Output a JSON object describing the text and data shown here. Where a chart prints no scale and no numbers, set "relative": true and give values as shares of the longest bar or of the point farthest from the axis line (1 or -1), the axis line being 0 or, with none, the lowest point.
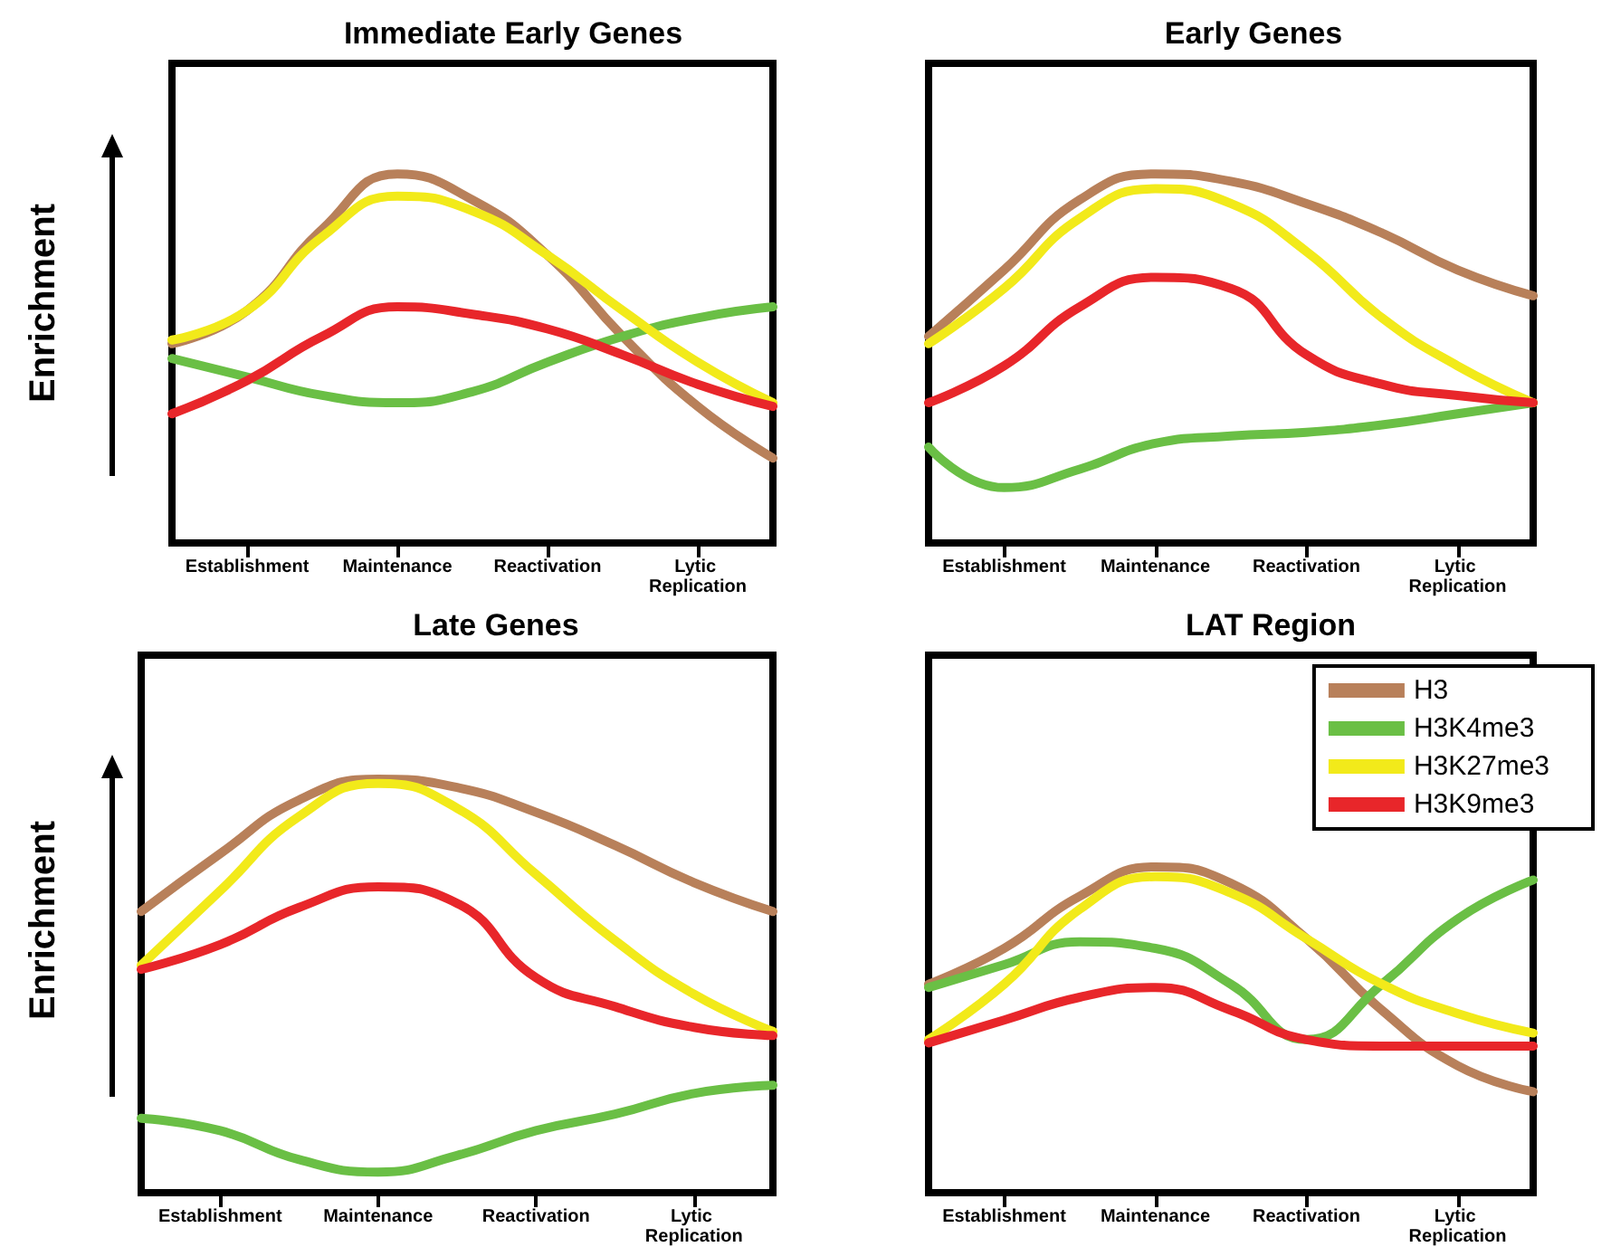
{
  "chart_data": [
    {
      "type": "line",
      "title": "Immediate Early Genes",
      "ylabel": "Enrichment",
      "relative": true,
      "legend": false,
      "grid": false,
      "marker": "none",
      "categories": [
        null,
        "Establishment",
        null,
        "Maintenance",
        null,
        "Reactivation",
        null,
        "Lytic Replication",
        null
      ],
      "series": [
        {
          "color": "#b8805a",
          "values": [
            0.54,
            0.63,
            0.85,
            1,
            0.93,
            0.78,
            0.56,
            0.37,
            0.23
          ]
        },
        {
          "color": "#6abf45",
          "values": [
            0.5,
            0.45,
            0.4,
            0.38,
            0.41,
            0.49,
            0.56,
            0.61,
            0.64
          ]
        },
        {
          "color": "#f2ea1a",
          "values": [
            0.55,
            0.63,
            0.83,
            0.94,
            0.9,
            0.78,
            0.63,
            0.49,
            0.38
          ]
        },
        {
          "color": "#e8262a",
          "values": [
            0.35,
            0.44,
            0.56,
            0.64,
            0.62,
            0.58,
            0.51,
            0.43,
            0.37
          ]
        }
      ]
    },
    {
      "type": "line",
      "title": "Early Genes",
      "relative": true,
      "legend": false,
      "grid": false,
      "marker": "none",
      "categories": [
        null,
        "Establishment",
        null,
        "Maintenance",
        null,
        "Reactivation",
        null,
        "Lytic Replication",
        null
      ],
      "series": [
        {
          "color": "#b8805a",
          "values": [
            0.56,
            0.74,
            0.93,
            1,
            0.98,
            0.92,
            0.84,
            0.74,
            0.67
          ]
        },
        {
          "color": "#6abf45",
          "values": [
            0.26,
            0.15,
            0.2,
            0.27,
            0.29,
            0.3,
            0.32,
            0.35,
            0.38
          ]
        },
        {
          "color": "#f2ea1a",
          "values": [
            0.54,
            0.69,
            0.88,
            0.96,
            0.92,
            0.79,
            0.61,
            0.48,
            0.38
          ]
        },
        {
          "color": "#e8262a",
          "values": [
            0.38,
            0.48,
            0.64,
            0.72,
            0.69,
            0.51,
            0.43,
            0.4,
            0.38
          ]
        }
      ]
    },
    {
      "type": "line",
      "title": "Late Genes",
      "ylabel": "Enrichment",
      "relative": true,
      "legend": false,
      "grid": false,
      "marker": "none",
      "categories": [
        null,
        "Establishment",
        null,
        "Maintenance",
        null,
        "Reactivation",
        null,
        "Lytic Replication",
        null
      ],
      "series": [
        {
          "color": "#b8805a",
          "values": [
            0.68,
            0.82,
            0.95,
            1,
            0.98,
            0.92,
            0.84,
            0.75,
            0.68
          ]
        },
        {
          "color": "#6abf45",
          "values": [
            0.18,
            0.15,
            0.08,
            0.05,
            0.09,
            0.15,
            0.19,
            0.24,
            0.26
          ]
        },
        {
          "color": "#f2ea1a",
          "values": [
            0.55,
            0.73,
            0.91,
            0.99,
            0.93,
            0.77,
            0.61,
            0.48,
            0.39
          ]
        },
        {
          "color": "#e8262a",
          "values": [
            0.54,
            0.6,
            0.69,
            0.74,
            0.7,
            0.52,
            0.45,
            0.4,
            0.38
          ]
        }
      ]
    },
    {
      "type": "line",
      "title": "LAT Region",
      "relative": true,
      "legend": "top right",
      "grid": false,
      "marker": "none",
      "categories": [
        null,
        "Establishment",
        null,
        "Maintenance",
        null,
        "Reactivation",
        null,
        "Lytic Replication",
        null
      ],
      "series": [
        {
          "name": "H3",
          "color": "#b8805a",
          "values": [
            0.64,
            0.75,
            0.91,
            1,
            0.95,
            0.78,
            0.56,
            0.39,
            0.31
          ]
        },
        {
          "name": "H3K4me3",
          "color": "#6abf45",
          "values": [
            0.63,
            0.7,
            0.77,
            0.75,
            0.64,
            0.47,
            0.64,
            0.84,
            0.96
          ]
        },
        {
          "name": "H3K27me3",
          "color": "#f2ea1a",
          "values": [
            0.47,
            0.64,
            0.87,
            0.97,
            0.92,
            0.78,
            0.64,
            0.55,
            0.49
          ]
        },
        {
          "name": "H3K9me3",
          "color": "#e8262a",
          "values": [
            0.46,
            0.53,
            0.6,
            0.63,
            0.56,
            0.47,
            0.45,
            0.45,
            0.45
          ]
        }
      ]
    }
  ]
}
